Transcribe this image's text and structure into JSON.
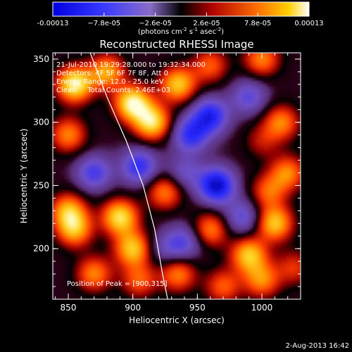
{
  "chart_data": {
    "type": "heatmap",
    "title": "Reconstructed RHESSI Image",
    "xlabel": "Heliocentric X (arcsec)",
    "ylabel": "Heliocentric Y (arcsec)",
    "xlim": [
      838,
      1030
    ],
    "ylim": [
      160,
      355
    ],
    "x_ticks": [
      850,
      900,
      950,
      1000
    ],
    "y_ticks": [
      200,
      250,
      300,
      350
    ],
    "colorbar": {
      "range": [
        -0.00013,
        0.00013
      ],
      "tick_labels": [
        "-0.00013",
        "−7.8e-05",
        "−2.6e-05",
        "2.6e-05",
        "7.8e-05",
        "0.00013"
      ],
      "unit_label_parts": [
        "(photons cm",
        "-2",
        " s",
        "-1",
        " asec",
        "-2",
        ")"
      ]
    },
    "annotations": [
      "21-Jul-2010 19:29:28.000 to 19:32:34.000",
      "Detectors: 4F 5F 6F 7F 8F, Att 0",
      "Energy Range: 12.0 - 25.0 keV",
      "Clean     Total Counts: 2.46E+03"
    ],
    "peak_label": "Position of Peak = [900,315]",
    "peak": [
      900,
      315
    ],
    "limb_curve": [
      [
        867,
        355
      ],
      [
        880,
        320
      ],
      [
        895,
        285
      ],
      [
        908,
        250
      ],
      [
        917,
        215
      ],
      [
        923,
        180
      ],
      [
        927,
        160
      ]
    ],
    "blobs": [
      {
        "x": 855,
        "y": 330,
        "v": 1.0
      },
      {
        "x": 880,
        "y": 340,
        "v": 0.7
      },
      {
        "x": 900,
        "y": 315,
        "v": 1.0
      },
      {
        "x": 915,
        "y": 300,
        "v": 0.9
      },
      {
        "x": 935,
        "y": 330,
        "v": 0.8
      },
      {
        "x": 960,
        "y": 345,
        "v": 0.5
      },
      {
        "x": 1000,
        "y": 350,
        "v": 0.6
      },
      {
        "x": 1015,
        "y": 300,
        "v": 0.6
      },
      {
        "x": 990,
        "y": 320,
        "v": -0.5
      },
      {
        "x": 960,
        "y": 305,
        "v": -0.8
      },
      {
        "x": 1000,
        "y": 285,
        "v": 0.3
      },
      {
        "x": 945,
        "y": 290,
        "v": -0.7
      },
      {
        "x": 850,
        "y": 290,
        "v": 0.6
      },
      {
        "x": 870,
        "y": 260,
        "v": -0.6
      },
      {
        "x": 905,
        "y": 265,
        "v": -0.7
      },
      {
        "x": 850,
        "y": 230,
        "v": 0.7
      },
      {
        "x": 855,
        "y": 215,
        "v": 0.7
      },
      {
        "x": 890,
        "y": 225,
        "v": 0.9
      },
      {
        "x": 900,
        "y": 200,
        "v": 0.8
      },
      {
        "x": 925,
        "y": 245,
        "v": 0.6
      },
      {
        "x": 965,
        "y": 250,
        "v": -1.0
      },
      {
        "x": 940,
        "y": 260,
        "v": -0.4
      },
      {
        "x": 1005,
        "y": 245,
        "v": 0.5
      },
      {
        "x": 1020,
        "y": 260,
        "v": 0.6
      },
      {
        "x": 1010,
        "y": 220,
        "v": 0.8
      },
      {
        "x": 985,
        "y": 225,
        "v": -0.5
      },
      {
        "x": 960,
        "y": 215,
        "v": 0.6
      },
      {
        "x": 940,
        "y": 205,
        "v": -0.5
      },
      {
        "x": 870,
        "y": 180,
        "v": 0.6
      },
      {
        "x": 905,
        "y": 175,
        "v": 0.5
      },
      {
        "x": 935,
        "y": 180,
        "v": 0.6
      },
      {
        "x": 990,
        "y": 195,
        "v": 0.8
      },
      {
        "x": 1000,
        "y": 175,
        "v": 0.6
      },
      {
        "x": 970,
        "y": 170,
        "v": 0.5
      },
      {
        "x": 1025,
        "y": 185,
        "v": 0.4
      },
      {
        "x": 925,
        "y": 200,
        "v": -0.3
      }
    ]
  },
  "footer": {
    "date": "2-Aug-2013 16:42"
  }
}
